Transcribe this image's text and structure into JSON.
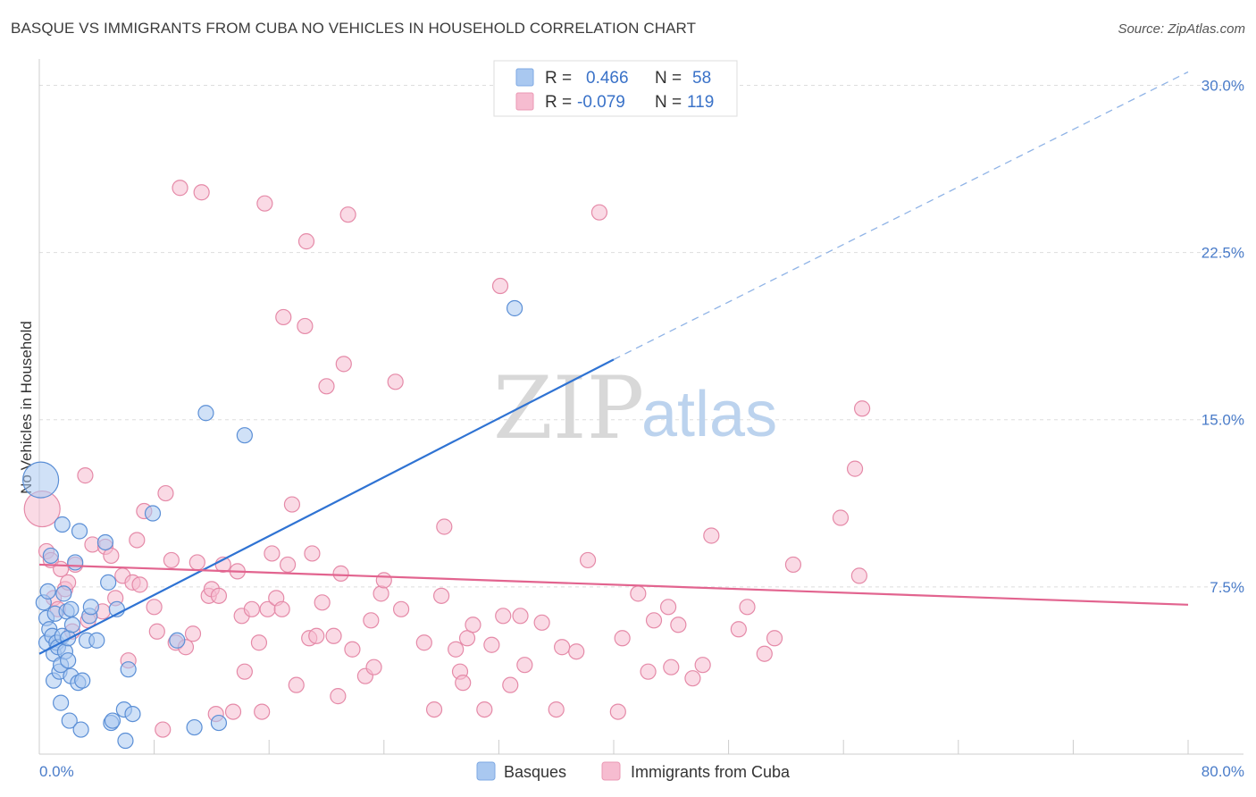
{
  "header": {
    "title": "BASQUE VS IMMIGRANTS FROM CUBA NO VEHICLES IN HOUSEHOLD CORRELATION CHART",
    "source": "Source: ZipAtlas.com"
  },
  "watermark": {
    "zip": "ZIP",
    "atlas": "atlas"
  },
  "legend_top": {
    "rows": [
      {
        "r_label": "R =",
        "r_value": "0.466",
        "n_label": "N =",
        "n_value": "58",
        "color": "#a9c8f0"
      },
      {
        "r_label": "R =",
        "r_value": "-0.079",
        "n_label": "N =",
        "n_value": "119",
        "color": "#f6bcd0"
      }
    ]
  },
  "chart_data": {
    "type": "scatter",
    "title": "BASQUE VS IMMIGRANTS FROM CUBA NO VEHICLES IN HOUSEHOLD CORRELATION CHART",
    "xlabel": "",
    "ylabel": "No Vehicles in Household",
    "xlim": [
      0,
      80
    ],
    "ylim": [
      0,
      30
    ],
    "x_tick_labels": [
      "0.0%",
      "80.0%"
    ],
    "y_ticks": [
      7.5,
      15.0,
      22.5,
      30.0
    ],
    "y_tick_labels": [
      "7.5%",
      "15.0%",
      "22.5%",
      "30.0%"
    ],
    "grid": true,
    "legend_position": "top-center",
    "series": [
      {
        "name": "Basques",
        "color": "#a9c8f0",
        "stroke": "#5b8fd6",
        "trend": {
          "x": [
            0,
            40
          ],
          "y": [
            4.5,
            17.7
          ],
          "dashed_to": [
            80,
            30.6
          ],
          "color": "#2f73d3"
        },
        "points": [
          [
            0.1,
            12.3
          ],
          [
            0.3,
            6.8
          ],
          [
            0.5,
            6.1
          ],
          [
            0.5,
            5.0
          ],
          [
            0.6,
            7.3
          ],
          [
            0.7,
            5.6
          ],
          [
            0.8,
            8.9
          ],
          [
            0.9,
            5.3
          ],
          [
            1.0,
            4.5
          ],
          [
            1.0,
            3.3
          ],
          [
            1.1,
            6.3
          ],
          [
            1.2,
            5.0
          ],
          [
            1.3,
            4.8
          ],
          [
            1.4,
            3.7
          ],
          [
            1.5,
            2.3
          ],
          [
            1.5,
            4.0
          ],
          [
            1.6,
            10.3
          ],
          [
            1.6,
            5.3
          ],
          [
            1.7,
            7.2
          ],
          [
            1.8,
            4.6
          ],
          [
            1.9,
            6.4
          ],
          [
            2.0,
            5.2
          ],
          [
            2.0,
            4.2
          ],
          [
            2.1,
            1.5
          ],
          [
            2.2,
            6.5
          ],
          [
            2.2,
            3.5
          ],
          [
            2.3,
            5.8
          ],
          [
            2.5,
            8.6
          ],
          [
            2.7,
            3.2
          ],
          [
            2.8,
            10.0
          ],
          [
            2.9,
            1.1
          ],
          [
            3.0,
            3.3
          ],
          [
            3.3,
            5.1
          ],
          [
            3.5,
            6.2
          ],
          [
            3.6,
            6.6
          ],
          [
            4.0,
            5.1
          ],
          [
            4.6,
            9.5
          ],
          [
            4.8,
            7.7
          ],
          [
            5.0,
            1.4
          ],
          [
            5.1,
            1.5
          ],
          [
            5.4,
            6.5
          ],
          [
            5.9,
            2.0
          ],
          [
            6.0,
            0.6
          ],
          [
            6.2,
            3.8
          ],
          [
            6.5,
            1.8
          ],
          [
            7.9,
            10.8
          ],
          [
            9.6,
            5.1
          ],
          [
            10.8,
            1.2
          ],
          [
            11.6,
            15.3
          ],
          [
            12.5,
            1.4
          ],
          [
            14.3,
            14.3
          ],
          [
            33.1,
            20.0
          ]
        ]
      },
      {
        "name": "Immigrants from Cuba",
        "color": "#f6bcd0",
        "stroke": "#e58aa8",
        "trend": {
          "x": [
            0,
            80
          ],
          "y": [
            8.5,
            6.7
          ],
          "color": "#e2648f"
        },
        "points": [
          [
            0.2,
            11.0
          ],
          [
            0.5,
            9.1
          ],
          [
            0.8,
            8.7
          ],
          [
            1.0,
            7.0
          ],
          [
            1.3,
            6.5
          ],
          [
            1.5,
            8.3
          ],
          [
            1.8,
            7.4
          ],
          [
            2.0,
            7.7
          ],
          [
            2.3,
            5.5
          ],
          [
            2.5,
            8.5
          ],
          [
            3.2,
            12.5
          ],
          [
            3.4,
            6.0
          ],
          [
            3.7,
            9.4
          ],
          [
            4.4,
            6.4
          ],
          [
            4.6,
            9.3
          ],
          [
            5.0,
            8.9
          ],
          [
            5.3,
            7.0
          ],
          [
            5.8,
            8.0
          ],
          [
            6.2,
            4.2
          ],
          [
            6.5,
            7.7
          ],
          [
            6.8,
            9.6
          ],
          [
            7.0,
            7.6
          ],
          [
            7.3,
            10.9
          ],
          [
            8.0,
            6.6
          ],
          [
            8.2,
            5.5
          ],
          [
            8.6,
            1.1
          ],
          [
            8.8,
            11.7
          ],
          [
            9.2,
            8.7
          ],
          [
            9.5,
            5.0
          ],
          [
            9.8,
            25.4
          ],
          [
            10.2,
            4.8
          ],
          [
            10.7,
            5.4
          ],
          [
            11.0,
            8.6
          ],
          [
            11.3,
            25.2
          ],
          [
            11.8,
            7.1
          ],
          [
            12.0,
            7.4
          ],
          [
            12.3,
            1.8
          ],
          [
            12.5,
            7.1
          ],
          [
            12.8,
            8.5
          ],
          [
            13.5,
            1.9
          ],
          [
            13.8,
            8.2
          ],
          [
            14.1,
            6.2
          ],
          [
            14.3,
            3.7
          ],
          [
            14.8,
            6.5
          ],
          [
            15.3,
            5.0
          ],
          [
            15.5,
            1.9
          ],
          [
            15.7,
            24.7
          ],
          [
            15.9,
            6.5
          ],
          [
            16.2,
            9.0
          ],
          [
            16.5,
            7.0
          ],
          [
            16.9,
            6.5
          ],
          [
            17.0,
            19.6
          ],
          [
            17.3,
            8.5
          ],
          [
            17.6,
            11.2
          ],
          [
            17.9,
            3.1
          ],
          [
            18.5,
            19.2
          ],
          [
            18.6,
            23.0
          ],
          [
            18.8,
            5.2
          ],
          [
            19.0,
            9.0
          ],
          [
            19.3,
            5.3
          ],
          [
            19.7,
            6.8
          ],
          [
            20.0,
            16.5
          ],
          [
            20.5,
            5.3
          ],
          [
            20.8,
            2.6
          ],
          [
            21.0,
            8.1
          ],
          [
            21.2,
            17.5
          ],
          [
            21.5,
            24.2
          ],
          [
            21.8,
            4.7
          ],
          [
            22.7,
            3.5
          ],
          [
            23.1,
            6.0
          ],
          [
            23.3,
            3.9
          ],
          [
            23.8,
            7.2
          ],
          [
            24.0,
            7.8
          ],
          [
            24.8,
            16.7
          ],
          [
            25.2,
            6.5
          ],
          [
            26.8,
            5.0
          ],
          [
            27.5,
            2.0
          ],
          [
            28.0,
            7.1
          ],
          [
            28.2,
            10.2
          ],
          [
            29.0,
            4.7
          ],
          [
            29.3,
            3.7
          ],
          [
            29.5,
            3.2
          ],
          [
            29.8,
            5.2
          ],
          [
            30.2,
            5.8
          ],
          [
            31.0,
            2.0
          ],
          [
            31.5,
            4.9
          ],
          [
            32.1,
            21.0
          ],
          [
            32.3,
            6.2
          ],
          [
            32.8,
            3.1
          ],
          [
            33.5,
            6.2
          ],
          [
            33.8,
            4.0
          ],
          [
            35.0,
            5.9
          ],
          [
            36.0,
            2.0
          ],
          [
            36.4,
            4.8
          ],
          [
            37.4,
            4.6
          ],
          [
            38.2,
            8.7
          ],
          [
            39.0,
            24.3
          ],
          [
            40.3,
            1.9
          ],
          [
            40.6,
            5.2
          ],
          [
            41.7,
            7.2
          ],
          [
            42.4,
            3.7
          ],
          [
            42.8,
            6.0
          ],
          [
            43.8,
            6.6
          ],
          [
            44.0,
            3.9
          ],
          [
            44.5,
            5.8
          ],
          [
            45.5,
            3.4
          ],
          [
            46.2,
            4.0
          ],
          [
            46.8,
            9.8
          ],
          [
            48.7,
            5.6
          ],
          [
            49.3,
            6.6
          ],
          [
            50.5,
            4.5
          ],
          [
            51.2,
            5.2
          ],
          [
            52.5,
            8.5
          ],
          [
            55.8,
            10.6
          ],
          [
            56.8,
            12.8
          ],
          [
            57.1,
            8.0
          ],
          [
            57.3,
            15.5
          ]
        ]
      }
    ]
  },
  "bottom_legend": {
    "items": [
      {
        "label": "Basques",
        "color": "#a9c8f0"
      },
      {
        "label": "Immigrants from Cuba",
        "color": "#f6bcd0"
      }
    ]
  }
}
